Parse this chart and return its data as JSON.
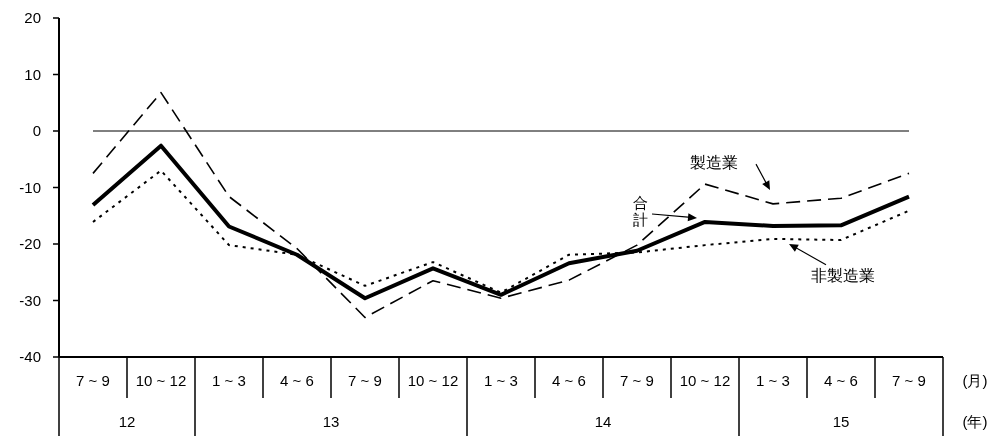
{
  "chart_data": {
    "type": "line",
    "categories": [
      "7 ~ 9",
      "10 ~ 12",
      "1 ~ 3",
      "4 ~ 6",
      "7 ~ 9",
      "10 ~ 12",
      "1 ~ 3",
      "4 ~ 6",
      "7 ~ 9",
      "10 ~ 12",
      "1 ~ 3",
      "4 ~ 6",
      "7 ~ 9"
    ],
    "ylim": [
      -40,
      20
    ],
    "yticks": [
      20,
      10,
      0,
      -10,
      -20,
      -30,
      -40
    ],
    "series": [
      {
        "name": "合計",
        "color": "#000000",
        "line_style": "solid",
        "values": [
          -13.1,
          -2.6,
          -16.9,
          -21.9,
          -29.6,
          -24.3,
          -29.0,
          -23.4,
          -21.2,
          -16.1,
          -16.8,
          -16.7,
          -11.6
        ]
      },
      {
        "name": "製造業",
        "color": "#000000",
        "line_style": "dashed",
        "values": [
          -7.5,
          6.8,
          -11.6,
          -20.8,
          -33.0,
          -26.5,
          -29.6,
          -26.4,
          -20.2,
          -9.4,
          -12.9,
          -11.9,
          -7.5
        ]
      },
      {
        "name": "非製造業",
        "color": "#000000",
        "line_style": "dotted",
        "values": [
          -16.1,
          -7.0,
          -20.2,
          -21.9,
          -27.4,
          -23.2,
          -28.6,
          -21.9,
          -21.5,
          -20.2,
          -19.1,
          -19.3,
          -14.1
        ]
      }
    ],
    "ref_lines": [
      {
        "axis": "y",
        "value": 0
      }
    ],
    "annotations": [
      "(月)",
      "(年)",
      "12",
      "13",
      "14",
      "15"
    ]
  }
}
